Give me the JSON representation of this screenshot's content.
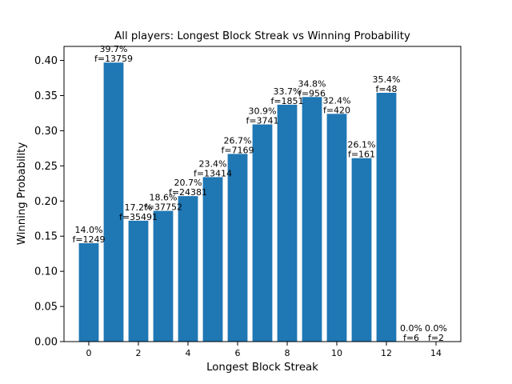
{
  "chart_data": {
    "type": "bar",
    "title": "All players: Longest Block Streak vs Winning Probability",
    "xlabel": "Longest Block Streak",
    "ylabel": "Winning Probability",
    "xlim": [
      -1,
      15
    ],
    "ylim": [
      0,
      0.42
    ],
    "grid": false,
    "bar_color": "#1f77b4",
    "x_ticks": [
      0,
      2,
      4,
      6,
      8,
      10,
      12,
      14
    ],
    "x_tick_labels": [
      "0",
      "2",
      "4",
      "6",
      "8",
      "10",
      "12",
      "14"
    ],
    "y_ticks": [
      0,
      0.05,
      0.1,
      0.15,
      0.2,
      0.25,
      0.3,
      0.35,
      0.4
    ],
    "y_tick_labels": [
      "0.00",
      "0.05",
      "0.10",
      "0.15",
      "0.20",
      "0.25",
      "0.30",
      "0.35",
      "0.40"
    ],
    "bars": [
      {
        "x": 0,
        "value": 0.14,
        "pct_label": "14.0%",
        "freq_label": "f=1249"
      },
      {
        "x": 1,
        "value": 0.397,
        "pct_label": "39.7%",
        "freq_label": "f=13759"
      },
      {
        "x": 2,
        "value": 0.172,
        "pct_label": "17.2%",
        "freq_label": "f=35491"
      },
      {
        "x": 3,
        "value": 0.186,
        "pct_label": "18.6%",
        "freq_label": "f=37752"
      },
      {
        "x": 4,
        "value": 0.207,
        "pct_label": "20.7%",
        "freq_label": "f=24381"
      },
      {
        "x": 5,
        "value": 0.234,
        "pct_label": "23.4%",
        "freq_label": "f=13414"
      },
      {
        "x": 6,
        "value": 0.267,
        "pct_label": "26.7%",
        "freq_label": "f=7169"
      },
      {
        "x": 7,
        "value": 0.309,
        "pct_label": "30.9%",
        "freq_label": "f=3741"
      },
      {
        "x": 8,
        "value": 0.337,
        "pct_label": "33.7%",
        "freq_label": "f=1851"
      },
      {
        "x": 9,
        "value": 0.348,
        "pct_label": "34.8%",
        "freq_label": "f=956"
      },
      {
        "x": 10,
        "value": 0.324,
        "pct_label": "32.4%",
        "freq_label": "f=420"
      },
      {
        "x": 11,
        "value": 0.261,
        "pct_label": "26.1%",
        "freq_label": "f=161"
      },
      {
        "x": 12,
        "value": 0.354,
        "pct_label": "35.4%",
        "freq_label": "f=48"
      },
      {
        "x": 13,
        "value": 0.0,
        "pct_label": "0.0%",
        "freq_label": "f=6"
      },
      {
        "x": 14,
        "value": 0.0,
        "pct_label": "0.0%",
        "freq_label": "f=2"
      }
    ]
  }
}
